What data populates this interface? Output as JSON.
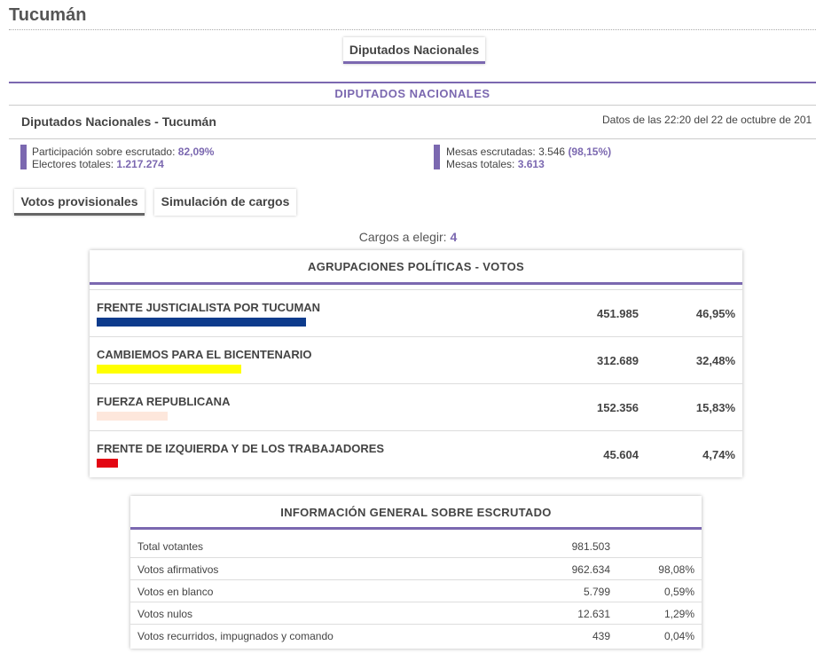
{
  "province": "Tucumán",
  "tab_main": "Diputados Nacionales",
  "section_title": "DIPUTADOS NACIONALES",
  "subheading": "Diputados Nacionales - Tucumán",
  "data_time": "Datos de las 22:20 del 22 de octubre de 201",
  "stats": {
    "participacion_label": "Participación sobre escrutado:",
    "participacion_value": "82,09%",
    "electores_label": "Electores totales:",
    "electores_value": "1.217.274",
    "mesas_escrutadas_label": "Mesas escrutadas:",
    "mesas_escrutadas_value": "3.546",
    "mesas_escrutadas_pct": "(98,15%)",
    "mesas_totales_label": "Mesas totales:",
    "mesas_totales_value": "3.613"
  },
  "tabs": {
    "votos": "Votos provisionales",
    "simulacion": "Simulación de cargos"
  },
  "cargos_label": "Cargos a elegir:",
  "cargos_value": "4",
  "votes_panel_title": "AGRUPACIONES POLÍTICAS - VOTOS",
  "parties": [
    {
      "name": "FRENTE JUSTICIALISTA POR TUCUMAN",
      "votes": "451.985",
      "pct": "46,95%",
      "share": 46.95,
      "color": "#0d3b8c"
    },
    {
      "name": "CAMBIEMOS PARA EL BICENTENARIO",
      "votes": "312.689",
      "pct": "32,48%",
      "share": 32.48,
      "color": "#ffff00"
    },
    {
      "name": "FUERZA REPUBLICANA",
      "votes": "152.356",
      "pct": "15,83%",
      "share": 15.83,
      "color": "#fde7dc"
    },
    {
      "name": "FRENTE DE IZQUIERDA Y DE LOS TRABAJADORES",
      "votes": "45.604",
      "pct": "4,74%",
      "share": 4.74,
      "color": "#e30613"
    }
  ],
  "info_panel_title": "INFORMACIÓN GENERAL SOBRE ESCRUTADO",
  "info_rows": [
    {
      "label": "Total votantes",
      "value": "981.503",
      "pct": ""
    },
    {
      "label": "Votos afirmativos",
      "value": "962.634",
      "pct": "98,08%"
    },
    {
      "label": "Votos en blanco",
      "value": "5.799",
      "pct": "0,59%"
    },
    {
      "label": "Votos nulos",
      "value": "12.631",
      "pct": "1,29%"
    },
    {
      "label": "Votos recurridos, impugnados y comando",
      "value": "439",
      "pct": "0,04%"
    }
  ],
  "colors": {
    "accent": "#7b68b0"
  }
}
